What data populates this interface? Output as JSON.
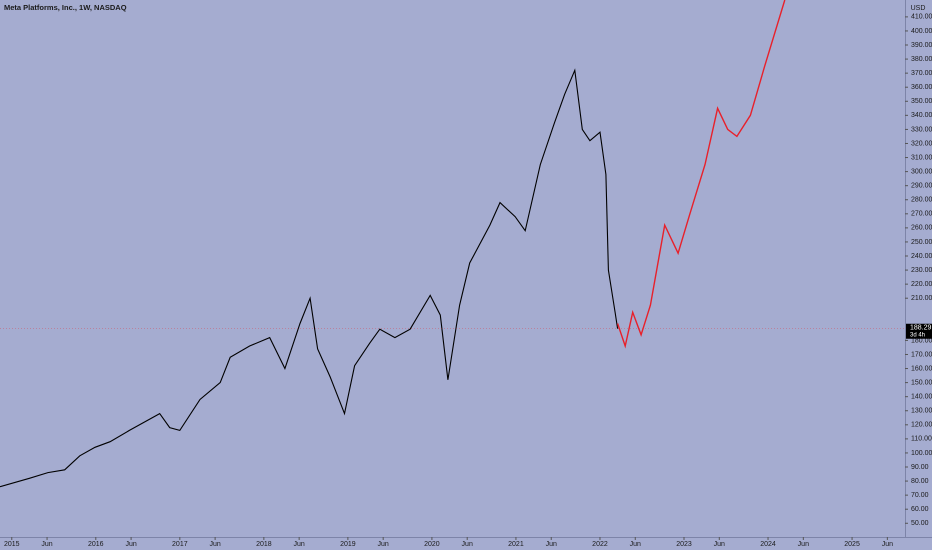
{
  "chart_data": {
    "type": "line",
    "title": "Meta Platforms, Inc., 1W, NASDAQ",
    "currency": "USD",
    "xlim": [
      2014.86,
      2025.63
    ],
    "ylim": [
      31,
      422
    ],
    "xticks": [
      {
        "value": 2015,
        "label": "2015"
      },
      {
        "value": 2015.42,
        "label": "Jun"
      },
      {
        "value": 2016,
        "label": "2016"
      },
      {
        "value": 2016.42,
        "label": "Jun"
      },
      {
        "value": 2017,
        "label": "2017"
      },
      {
        "value": 2017.42,
        "label": "Jun"
      },
      {
        "value": 2018,
        "label": "2018"
      },
      {
        "value": 2018.42,
        "label": "Jun"
      },
      {
        "value": 2019,
        "label": "2019"
      },
      {
        "value": 2019.42,
        "label": "Jun"
      },
      {
        "value": 2020,
        "label": "2020"
      },
      {
        "value": 2020.42,
        "label": "Jun"
      },
      {
        "value": 2021,
        "label": "2021"
      },
      {
        "value": 2021.42,
        "label": "Jun"
      },
      {
        "value": 2022,
        "label": "2022"
      },
      {
        "value": 2022.42,
        "label": "Jun"
      },
      {
        "value": 2023,
        "label": "2023"
      },
      {
        "value": 2023.42,
        "label": "Jun"
      },
      {
        "value": 2024,
        "label": "2024"
      },
      {
        "value": 2024.42,
        "label": "Jun"
      },
      {
        "value": 2025,
        "label": "2025"
      },
      {
        "value": 2025.42,
        "label": "Jun"
      }
    ],
    "yticks": [
      {
        "value": 50,
        "label": "50.00"
      },
      {
        "value": 60,
        "label": "60.00"
      },
      {
        "value": 70,
        "label": "70.00"
      },
      {
        "value": 80,
        "label": "80.00"
      },
      {
        "value": 90,
        "label": "90.00"
      },
      {
        "value": 100,
        "label": "100.00"
      },
      {
        "value": 110,
        "label": "110.00"
      },
      {
        "value": 120,
        "label": "120.00"
      },
      {
        "value": 130,
        "label": "130.00"
      },
      {
        "value": 140,
        "label": "140.00"
      },
      {
        "value": 150,
        "label": "150.00"
      },
      {
        "value": 160,
        "label": "160.00"
      },
      {
        "value": 170,
        "label": "170.00"
      },
      {
        "value": 180,
        "label": "180.00"
      },
      {
        "value": 210,
        "label": "210.00"
      },
      {
        "value": 220,
        "label": "220.00"
      },
      {
        "value": 230,
        "label": "230.00"
      },
      {
        "value": 240,
        "label": "240.00"
      },
      {
        "value": 250,
        "label": "250.00"
      },
      {
        "value": 260,
        "label": "260.00"
      },
      {
        "value": 270,
        "label": "270.00"
      },
      {
        "value": 280,
        "label": "280.00"
      },
      {
        "value": 290,
        "label": "290.00"
      },
      {
        "value": 300,
        "label": "300.00"
      },
      {
        "value": 310,
        "label": "310.00"
      },
      {
        "value": 320,
        "label": "320.00"
      },
      {
        "value": 330,
        "label": "330.00"
      },
      {
        "value": 340,
        "label": "340.00"
      },
      {
        "value": 350,
        "label": "350.00"
      },
      {
        "value": 360,
        "label": "360.00"
      },
      {
        "value": 370,
        "label": "370.00"
      },
      {
        "value": 380,
        "label": "380.00"
      },
      {
        "value": 390,
        "label": "390.00"
      },
      {
        "value": 400,
        "label": "400.00"
      },
      {
        "value": 410,
        "label": "410.00"
      }
    ],
    "last_price": {
      "value": 188.29,
      "label": "188.29"
    },
    "countdown": "3d 4h",
    "series": [
      {
        "color": "#000000",
        "x": [
          2014.86,
          2015.21,
          2015.43,
          2015.63,
          2015.81,
          2015.99,
          2016.17,
          2016.4,
          2016.76,
          2016.88,
          2017.0,
          2017.24,
          2017.48,
          2017.6,
          2017.83,
          2018.07,
          2018.25,
          2018.43,
          2018.55,
          2018.64,
          2018.79,
          2018.96,
          2019.08,
          2019.26,
          2019.38,
          2019.56,
          2019.74,
          2019.98,
          2020.1,
          2020.19,
          2020.33,
          2020.45,
          2020.69,
          2020.81,
          2020.99,
          2021.11,
          2021.29,
          2021.46,
          2021.58,
          2021.7,
          2021.79,
          2021.88,
          2022.0,
          2022.07,
          2022.1,
          2022.18,
          2022.21
        ],
        "values": [
          76,
          82,
          86,
          88,
          98,
          104,
          108,
          116,
          128,
          118,
          116,
          138,
          150,
          168,
          176,
          182,
          160,
          192,
          210,
          174,
          154,
          128,
          162,
          178,
          188,
          182,
          188,
          212,
          198,
          152,
          205,
          235,
          262,
          278,
          268,
          258,
          305,
          335,
          355,
          372,
          330,
          322,
          328,
          298,
          230,
          200,
          188.29
        ]
      },
      {
        "color": "#e8202a",
        "x": [
          2022.21,
          2022.3,
          2022.39,
          2022.49,
          2022.6,
          2022.77,
          2022.93,
          2023.07,
          2023.25,
          2023.4,
          2023.52,
          2023.63,
          2023.79,
          2023.96,
          2024.2
        ],
        "values": [
          192,
          176,
          200,
          184,
          205,
          262,
          242,
          270,
          305,
          345,
          330,
          325,
          340,
          375,
          422
        ]
      }
    ]
  }
}
